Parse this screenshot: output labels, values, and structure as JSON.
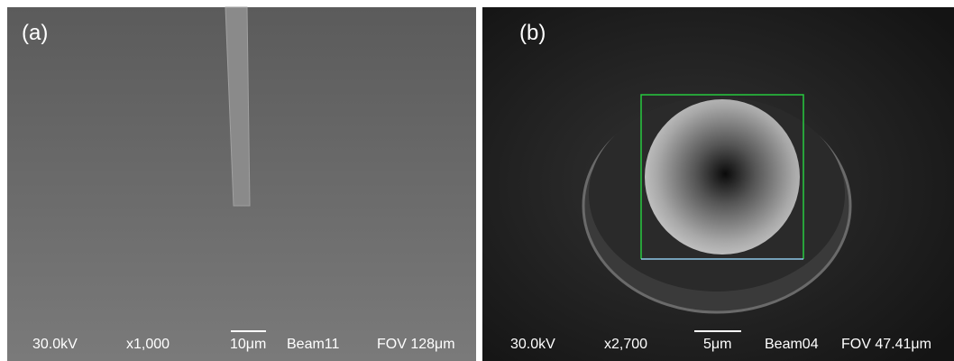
{
  "panels": [
    {
      "label": "(a)",
      "info": {
        "voltage": "30.0kV",
        "magnification": "x1,000",
        "scale": "10μm",
        "beam": "Beam11",
        "fov": "FOV 128μm"
      }
    },
    {
      "label": "(b)",
      "info": {
        "voltage": "30.0kV",
        "magnification": "x2,700",
        "scale": "5μm",
        "beam": "Beam04",
        "fov": "FOV 47.41μm"
      }
    }
  ]
}
